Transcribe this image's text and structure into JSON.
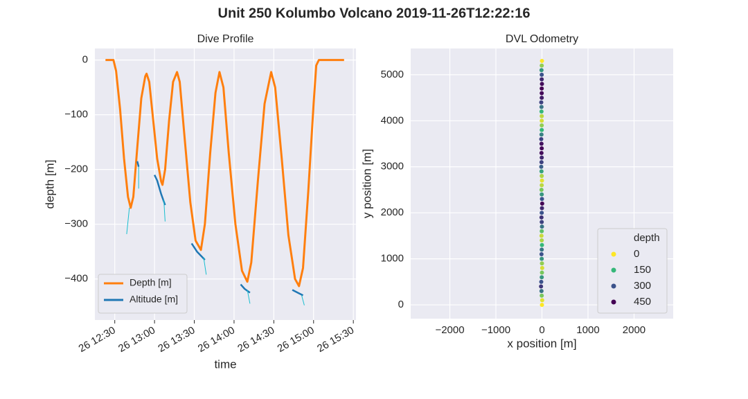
{
  "title": "Unit 250 Kolumbo Volcano 2019-11-26T12:22:16",
  "chart_data": [
    {
      "type": "line",
      "title": "Dive Profile",
      "xlabel": "time",
      "ylabel": "depth [m]",
      "xlim": [
        "26 12:15",
        "26 15:32"
      ],
      "xticks": [
        "26 12:30",
        "26 13:00",
        "26 13:30",
        "26 14:00",
        "26 14:30",
        "26 15:00",
        "26 15:30"
      ],
      "ylim": [
        -475,
        21
      ],
      "yticks": [
        0,
        {
          "value": -100,
          "label": "−100"
        },
        {
          "value": -200,
          "label": "−200"
        },
        {
          "value": -300,
          "label": "−300"
        },
        {
          "value": -400,
          "label": "−400"
        }
      ],
      "grid": true,
      "legend": "lower left",
      "series": [
        {
          "name": "Depth [m]",
          "color": "#ff7f0e",
          "x": [
            "26 12:23",
            "26 12:29",
            "26 12:31",
            "26 12:34",
            "26 12:37",
            "26 12:40",
            "26 12:42",
            "26 12:44",
            "26 12:47",
            "26 12:50",
            "26 12:53",
            "26 12:54",
            "26 12:56",
            "26 12:59",
            "26 13:02",
            "26 13:05",
            "26 13:06",
            "26 13:08",
            "26 13:11",
            "26 13:14",
            "26 13:17",
            "26 13:19",
            "26 13:23",
            "26 13:27",
            "26 13:31",
            "26 13:35",
            "26 13:38",
            "26 13:42",
            "26 13:46",
            "26 13:49",
            "26 13:52",
            "26 13:56",
            "26 14:01",
            "26 14:06",
            "26 14:10",
            "26 14:13",
            "26 14:18",
            "26 14:23",
            "26 14:28",
            "26 14:31",
            "26 14:36",
            "26 14:41",
            "26 14:46",
            "26 14:49",
            "26 14:52",
            "26 14:56",
            "26 15:00",
            "26 15:02",
            "26 15:04",
            "26 15:23"
          ],
          "values": [
            0,
            0,
            -20,
            -90,
            -180,
            -250,
            -270,
            -250,
            -160,
            -70,
            -30,
            -25,
            -40,
            -110,
            -180,
            -222,
            -228,
            -200,
            -110,
            -40,
            -22,
            -40,
            -150,
            -260,
            -330,
            -347,
            -300,
            -170,
            -60,
            -22,
            -50,
            -170,
            -300,
            -385,
            -405,
            -370,
            -220,
            -80,
            -22,
            -50,
            -180,
            -320,
            -400,
            -413,
            -380,
            -240,
            -80,
            -10,
            0,
            0
          ]
        },
        {
          "name": "Altitude [m]",
          "color": "#1f77b4",
          "x": [
            "26 12:47",
            "26 12:48",
            null,
            "26 13:00",
            "26 13:02",
            "26 13:05",
            "26 13:08",
            null,
            "26 13:28",
            "26 13:32",
            "26 13:36",
            "26 13:38",
            null,
            "26 14:05",
            "26 14:08",
            "26 14:12",
            null,
            "26 14:44",
            "26 14:48",
            "26 14:52"
          ],
          "values": [
            -185,
            -195,
            null,
            -210,
            -220,
            -245,
            -265,
            null,
            -335,
            -350,
            -360,
            -365,
            null,
            -410,
            -418,
            -425,
            null,
            -420,
            -425,
            -430
          ]
        },
        {
          "color": "#17becf",
          "x": [
            "26 12:48",
            "26 12:48",
            null,
            "26 12:41",
            "26 12:39",
            null,
            "26 13:07",
            "26 13:08",
            null,
            "26 13:37",
            "26 13:39",
            null,
            "26 14:10",
            "26 14:12",
            null,
            "26 14:51",
            "26 14:53"
          ],
          "values": [
            -195,
            -235,
            null,
            -270,
            -318,
            null,
            -255,
            -295,
            null,
            -360,
            -392,
            null,
            -420,
            -445,
            null,
            -430,
            -448
          ]
        }
      ]
    },
    {
      "type": "scatter",
      "title": "DVL Odometry",
      "xlabel": "x position [m]",
      "ylabel": "y position [m]",
      "xlim": [
        -2850,
        2850
      ],
      "xticks": [
        {
          "value": -2000,
          "label": "−2000"
        },
        {
          "value": -1000,
          "label": "−1000"
        },
        0,
        1000,
        2000
      ],
      "ylim": [
        -300,
        5570
      ],
      "yticks": [
        0,
        1000,
        2000,
        3000,
        4000,
        5000
      ],
      "grid": true,
      "legend": "lower right",
      "hue_title": "depth",
      "hue_levels": [
        0,
        150,
        300,
        450
      ],
      "hue_colors": [
        "#fde725",
        "#35b779",
        "#3b528b",
        "#440154"
      ],
      "x": [
        0,
        5,
        -5,
        -10,
        -20,
        -15,
        -5,
        0,
        5,
        0,
        -5,
        -10,
        -5,
        0,
        -5,
        -10,
        -5,
        0,
        -5,
        -10,
        -5,
        0,
        5,
        0,
        -5,
        -10,
        -5,
        0,
        -5,
        -10,
        -15,
        -10,
        -5,
        -10,
        -5,
        -10,
        -15,
        -10,
        -5,
        -5,
        -5,
        -5,
        -10,
        -10,
        -15,
        -5,
        -5,
        -5,
        0,
        -5,
        -5,
        -10,
        -5,
        0
      ],
      "values": [
        0,
        100,
        200,
        300,
        400,
        500,
        600,
        700,
        800,
        900,
        1000,
        1100,
        1200,
        1300,
        1400,
        1500,
        1600,
        1700,
        1800,
        1900,
        2000,
        2100,
        2200,
        2300,
        2400,
        2500,
        2600,
        2700,
        2800,
        2900,
        3000,
        3100,
        3200,
        3300,
        3400,
        3500,
        3600,
        3700,
        3800,
        3900,
        4000,
        4100,
        4200,
        4300,
        4400,
        4500,
        4600,
        4700,
        4800,
        4900,
        5000,
        5100,
        5200,
        5300
      ],
      "hue": [
        0,
        20,
        100,
        250,
        350,
        300,
        200,
        100,
        30,
        80,
        200,
        300,
        250,
        150,
        60,
        40,
        120,
        250,
        330,
        360,
        300,
        380,
        450,
        300,
        200,
        100,
        50,
        20,
        60,
        180,
        280,
        330,
        380,
        430,
        440,
        420,
        330,
        230,
        150,
        80,
        30,
        50,
        150,
        250,
        330,
        400,
        440,
        450,
        430,
        380,
        300,
        200,
        80,
        0
      ]
    }
  ]
}
